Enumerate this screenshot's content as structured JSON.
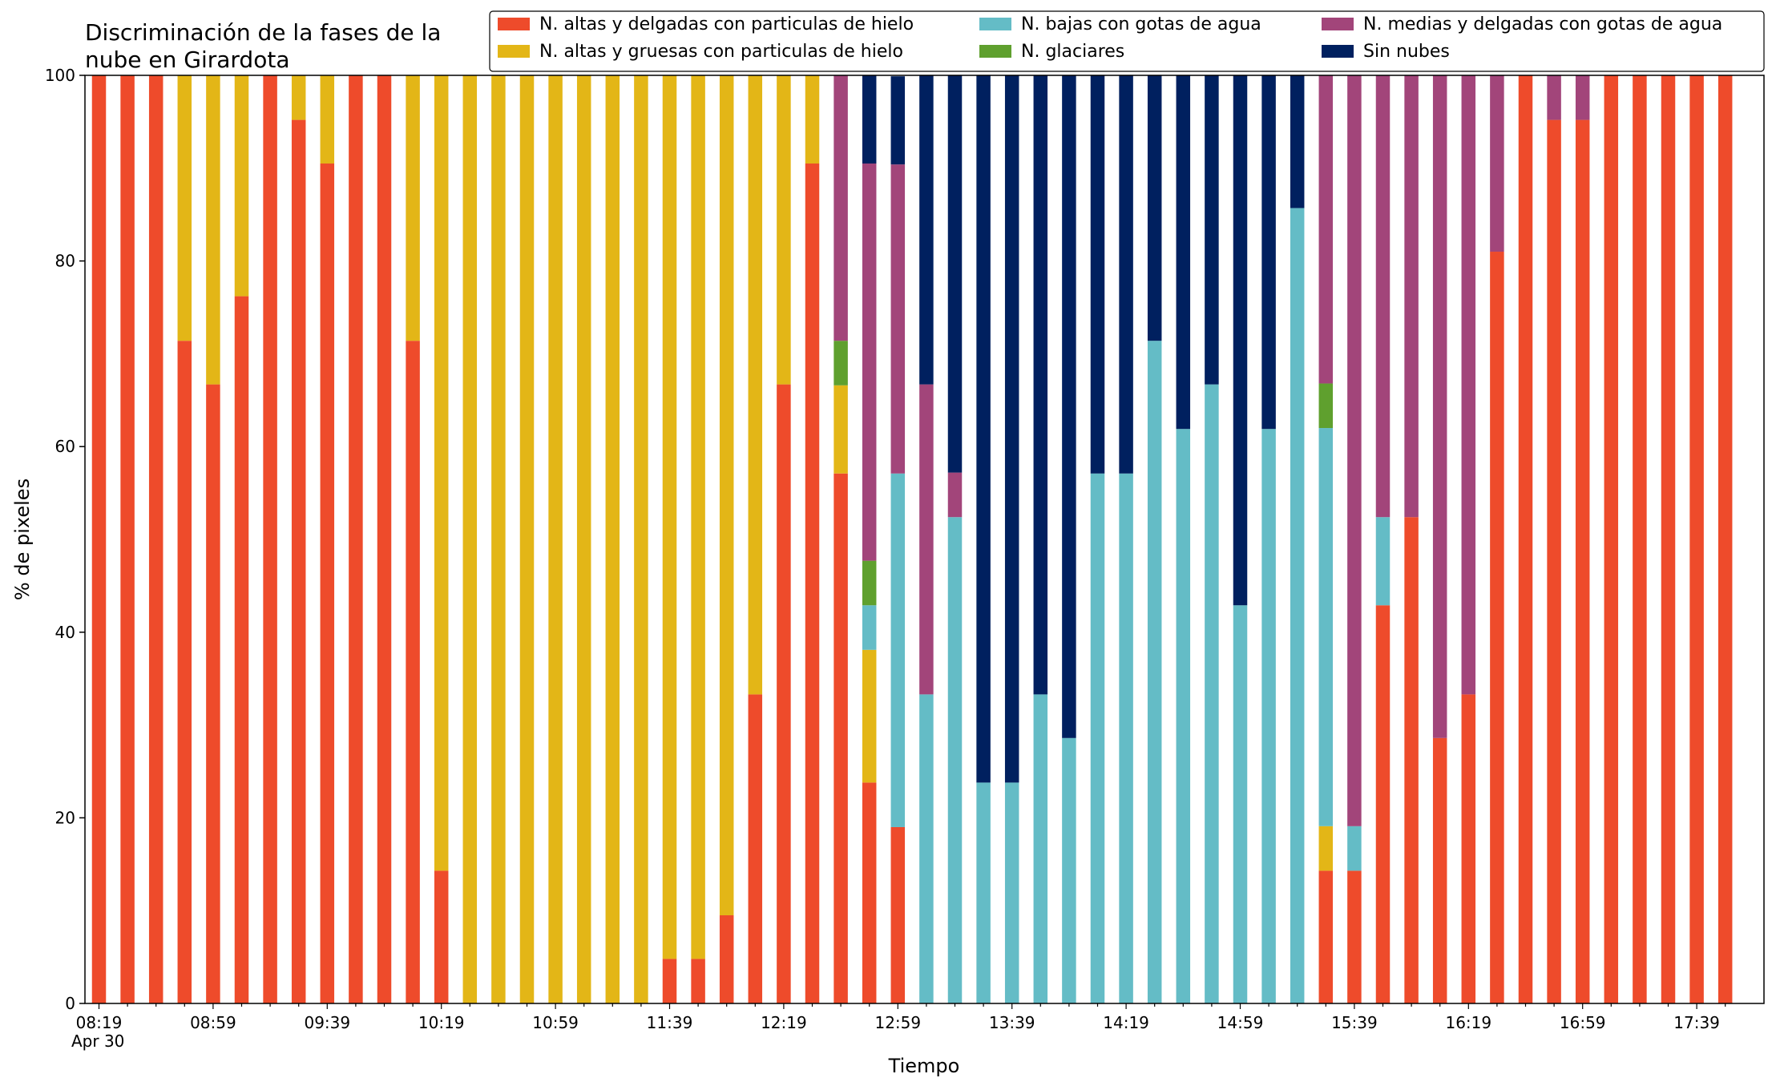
{
  "chart_data": {
    "type": "bar",
    "stacked": true,
    "title_lines": [
      "Discriminación de la fases de la",
      "nube en Girardota"
    ],
    "xlabel": "Tiempo",
    "ylabel": "% de pixeles",
    "ylim": [
      0,
      100
    ],
    "grid": false,
    "legend_position": "top-right",
    "y_ticks": [
      "0",
      "20",
      "40",
      "60",
      "80",
      "100"
    ],
    "x_ticks": [
      "08:19",
      "08:59",
      "09:39",
      "10:19",
      "10:59",
      "11:39",
      "12:19",
      "12:59",
      "13:39",
      "14:19",
      "14:59",
      "15:39",
      "16:19",
      "16:59",
      "17:39"
    ],
    "x_date_label": "Apr 30",
    "categories": [
      "08:19",
      "08:29",
      "08:39",
      "08:49",
      "08:59",
      "09:09",
      "09:19",
      "09:29",
      "09:39",
      "09:49",
      "09:59",
      "10:09",
      "10:19",
      "10:29",
      "10:39",
      "10:49",
      "10:59",
      "11:09",
      "11:19",
      "11:29",
      "11:39",
      "11:49",
      "11:59",
      "12:09",
      "12:19",
      "12:29",
      "12:39",
      "12:49",
      "12:59",
      "13:09",
      "13:19",
      "13:29",
      "13:39",
      "13:49",
      "13:59",
      "14:09",
      "14:19",
      "14:29",
      "14:39",
      "14:49",
      "14:59",
      "15:09",
      "15:19",
      "15:29",
      "15:39",
      "15:49",
      "15:59",
      "16:09",
      "16:19",
      "16:29",
      "16:39",
      "16:49",
      "16:59",
      "17:09",
      "17:19",
      "17:29",
      "17:39",
      "17:49"
    ],
    "series": [
      {
        "name": "N. altas y delgadas con particulas de hielo",
        "color": "#ee4b2b",
        "values": [
          100,
          100,
          100,
          71.4,
          66.7,
          76.2,
          100,
          95.2,
          90.5,
          100,
          100,
          71.4,
          14.3,
          0,
          0,
          0,
          0,
          0,
          0,
          0,
          4.8,
          4.8,
          9.5,
          33.3,
          66.7,
          90.5,
          57.1,
          23.8,
          19,
          0,
          0,
          0,
          0,
          0,
          0,
          0,
          0,
          0,
          0,
          0,
          0,
          0,
          0,
          14.3,
          14.3,
          42.9,
          52.4,
          28.6,
          33.3,
          81,
          100,
          95.2,
          95.2,
          100,
          100,
          100,
          100,
          100
        ]
      },
      {
        "name": "N. altas y gruesas con particulas de hielo",
        "color": "#e3b617",
        "values": [
          0,
          0,
          0,
          28.6,
          33.3,
          23.8,
          0,
          4.8,
          9.5,
          0,
          0,
          28.6,
          85.7,
          100,
          100,
          100,
          100,
          100,
          100,
          100,
          95.2,
          95.2,
          90.5,
          66.7,
          33.3,
          9.5,
          9.5,
          14.3,
          0,
          0,
          0,
          0,
          0,
          0,
          0,
          0,
          0,
          0,
          0,
          0,
          0,
          0,
          0,
          4.8,
          0,
          0,
          0,
          0,
          0,
          0,
          0,
          0,
          0,
          0,
          0,
          0,
          0,
          0
        ]
      },
      {
        "name": "N. bajas con gotas de agua",
        "color": "#64bcc6",
        "values": [
          0,
          0,
          0,
          0,
          0,
          0,
          0,
          0,
          0,
          0,
          0,
          0,
          0,
          0,
          0,
          0,
          0,
          0,
          0,
          0,
          0,
          0,
          0,
          0,
          0,
          0,
          0,
          4.8,
          38.1,
          33.3,
          52.4,
          23.8,
          23.8,
          33.3,
          28.6,
          57.1,
          57.1,
          71.4,
          61.9,
          66.7,
          42.9,
          61.9,
          85.7,
          42.9,
          4.8,
          9.5,
          0,
          0,
          0,
          0,
          0,
          0,
          0,
          0,
          0,
          0,
          0,
          0
        ]
      },
      {
        "name": "N. glaciares",
        "color": "#5fa02e",
        "values": [
          0,
          0,
          0,
          0,
          0,
          0,
          0,
          0,
          0,
          0,
          0,
          0,
          0,
          0,
          0,
          0,
          0,
          0,
          0,
          0,
          0,
          0,
          0,
          0,
          0,
          0,
          4.8,
          4.8,
          0,
          0,
          0,
          0,
          0,
          0,
          0,
          0,
          0,
          0,
          0,
          0,
          0,
          0,
          0,
          4.8,
          0,
          0,
          0,
          0,
          0,
          0,
          0,
          0,
          0,
          0,
          0,
          0,
          0,
          0
        ]
      },
      {
        "name": "N. medias y delgadas con gotas de agua",
        "color": "#a2457a",
        "values": [
          0,
          0,
          0,
          0,
          0,
          0,
          0,
          0,
          0,
          0,
          0,
          0,
          0,
          0,
          0,
          0,
          0,
          0,
          0,
          0,
          0,
          0,
          0,
          0,
          0,
          0,
          28.6,
          42.8,
          33.3,
          33.4,
          4.8,
          0,
          0,
          0,
          0,
          0,
          0,
          0,
          0,
          0,
          0,
          0,
          0,
          33.3,
          80.9,
          47.6,
          47.6,
          71.4,
          66.7,
          19,
          0,
          4.8,
          4.8,
          0,
          0,
          0,
          0,
          0
        ]
      },
      {
        "name": "Sin nubes",
        "color": "#00205f",
        "values": [
          0,
          0,
          0,
          0,
          0,
          0,
          0,
          0,
          0,
          0,
          0,
          0,
          0,
          0,
          0,
          0,
          0,
          0,
          0,
          0,
          0,
          0,
          0,
          0,
          0,
          0,
          0,
          9.5,
          9.5,
          33.3,
          42.8,
          76.2,
          76.2,
          66.7,
          71.4,
          42.9,
          42.9,
          28.6,
          38.1,
          33.3,
          57.1,
          38.1,
          14.3,
          0,
          0,
          0,
          0,
          0,
          0,
          0,
          0,
          0,
          0,
          0,
          0,
          0,
          0,
          0
        ]
      }
    ]
  }
}
